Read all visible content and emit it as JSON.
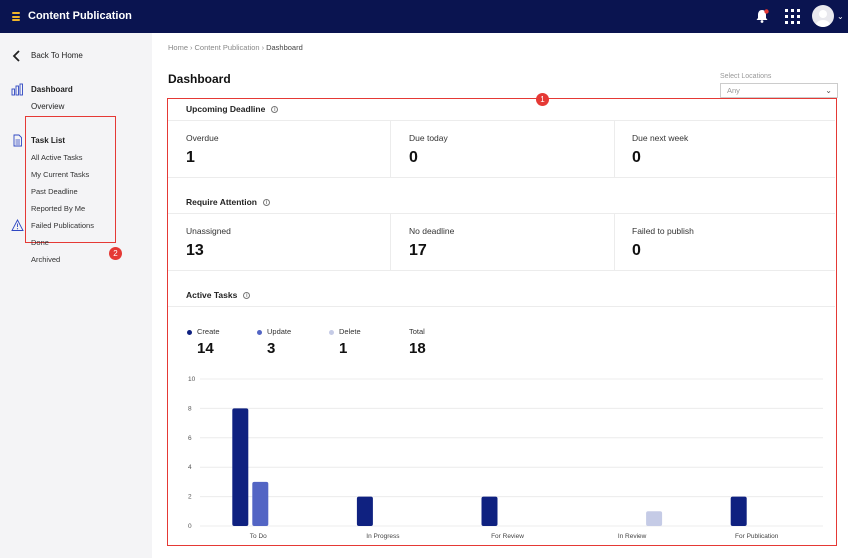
{
  "app": {
    "title": "Content Publication"
  },
  "sidebar": {
    "back_label": "Back To Home",
    "dashboard_label": "Dashboard",
    "overview_label": "Overview",
    "tasklist_label": "Task List",
    "task_items": [
      "All Active Tasks",
      "My Current Tasks",
      "Past Deadline",
      "Reported By Me",
      "Failed Publications",
      "Done",
      "Archived"
    ],
    "badge": "2"
  },
  "breadcrumb": [
    "Home",
    "Content Publication",
    "Dashboard"
  ],
  "page_title": "Dashboard",
  "locations": {
    "label": "Select Locations",
    "value": "Any"
  },
  "panel_badge": "1",
  "upcoming": {
    "title": "Upcoming Deadline",
    "stats": [
      {
        "label": "Overdue",
        "value": "1"
      },
      {
        "label": "Due today",
        "value": "0"
      },
      {
        "label": "Due next week",
        "value": "0"
      }
    ]
  },
  "attention": {
    "title": "Require Attention",
    "stats": [
      {
        "label": "Unassigned",
        "value": "13"
      },
      {
        "label": "No deadline",
        "value": "17"
      },
      {
        "label": "Failed to publish",
        "value": "0"
      }
    ]
  },
  "active": {
    "title": "Active Tasks",
    "legend": [
      {
        "label": "Create",
        "value": "14",
        "color": "#0f2180"
      },
      {
        "label": "Update",
        "value": "3",
        "color": "#5365c4"
      },
      {
        "label": "Delete",
        "value": "1",
        "color": "#c5cbe6"
      },
      {
        "label": "Total",
        "value": "18"
      }
    ]
  },
  "chart_data": {
    "type": "bar",
    "categories": [
      "To Do",
      "In Progress",
      "For Review",
      "In Review",
      "For Publication"
    ],
    "series": [
      {
        "name": "Create",
        "color": "#0f2180",
        "values": [
          8,
          2,
          2,
          0,
          2
        ]
      },
      {
        "name": "Update",
        "color": "#5365c4",
        "values": [
          3,
          0,
          0,
          0,
          0
        ]
      },
      {
        "name": "Delete",
        "color": "#c5cbe6",
        "values": [
          0,
          0,
          0,
          1,
          0
        ]
      }
    ],
    "yticks": [
      0,
      2,
      4,
      6,
      8,
      10
    ],
    "ylim": [
      0,
      10
    ],
    "grid": true
  }
}
